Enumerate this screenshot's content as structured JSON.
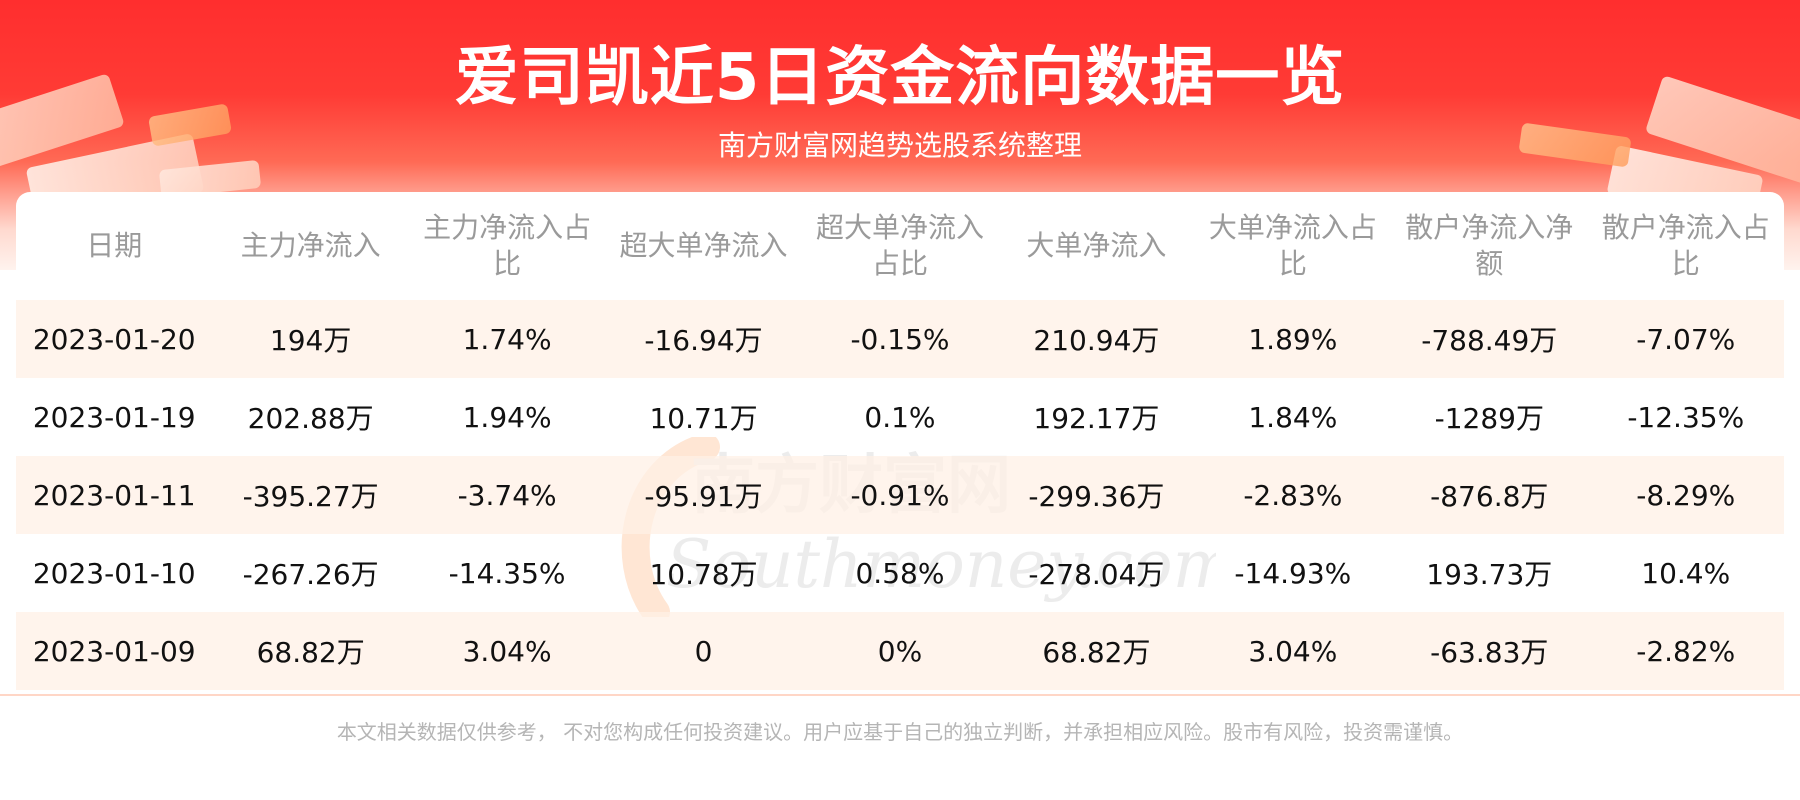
{
  "header": {
    "title": "爱司凯近5日资金流向数据一览",
    "subtitle": "南方财富网趋势选股系统整理"
  },
  "table": {
    "columns": [
      "日期",
      "主力净流入",
      "主力净流入占比",
      "超大单净流入",
      "超大单净流入占比",
      "大单净流入",
      "大单净流入占比",
      "散户净流入净额",
      "散户净流入占比"
    ],
    "rows": [
      [
        "2023-01-20",
        "194万",
        "1.74%",
        "-16.94万",
        "-0.15%",
        "210.94万",
        "1.89%",
        "-788.49万",
        "-7.07%"
      ],
      [
        "2023-01-19",
        "202.88万",
        "1.94%",
        "10.71万",
        "0.1%",
        "192.17万",
        "1.84%",
        "-1289万",
        "-12.35%"
      ],
      [
        "2023-01-11",
        "-395.27万",
        "-3.74%",
        "-95.91万",
        "-0.91%",
        "-299.36万",
        "-2.83%",
        "-876.8万",
        "-8.29%"
      ],
      [
        "2023-01-10",
        "-267.26万",
        "-14.35%",
        "10.78万",
        "0.58%",
        "-278.04万",
        "-14.93%",
        "193.73万",
        "10.4%"
      ],
      [
        "2023-01-09",
        "68.82万",
        "3.04%",
        "0",
        "0%",
        "68.82万",
        "3.04%",
        "-63.83万",
        "-2.82%"
      ]
    ]
  },
  "watermark": {
    "cn": "南方财富网",
    "en": "Southmoney.com"
  },
  "footer": {
    "disclaimer": "本文相关数据仅供参考， 不对您构成任何投资建议。用户应基于自己的独立判断，并承担相应风险。股市有风险，投资需谨慎。"
  },
  "colors": {
    "banner_red": "#ff2e2e",
    "row_highlight": "#fff0e6",
    "header_text": "#9a9a9a",
    "footer_text": "#b5b5b5"
  }
}
